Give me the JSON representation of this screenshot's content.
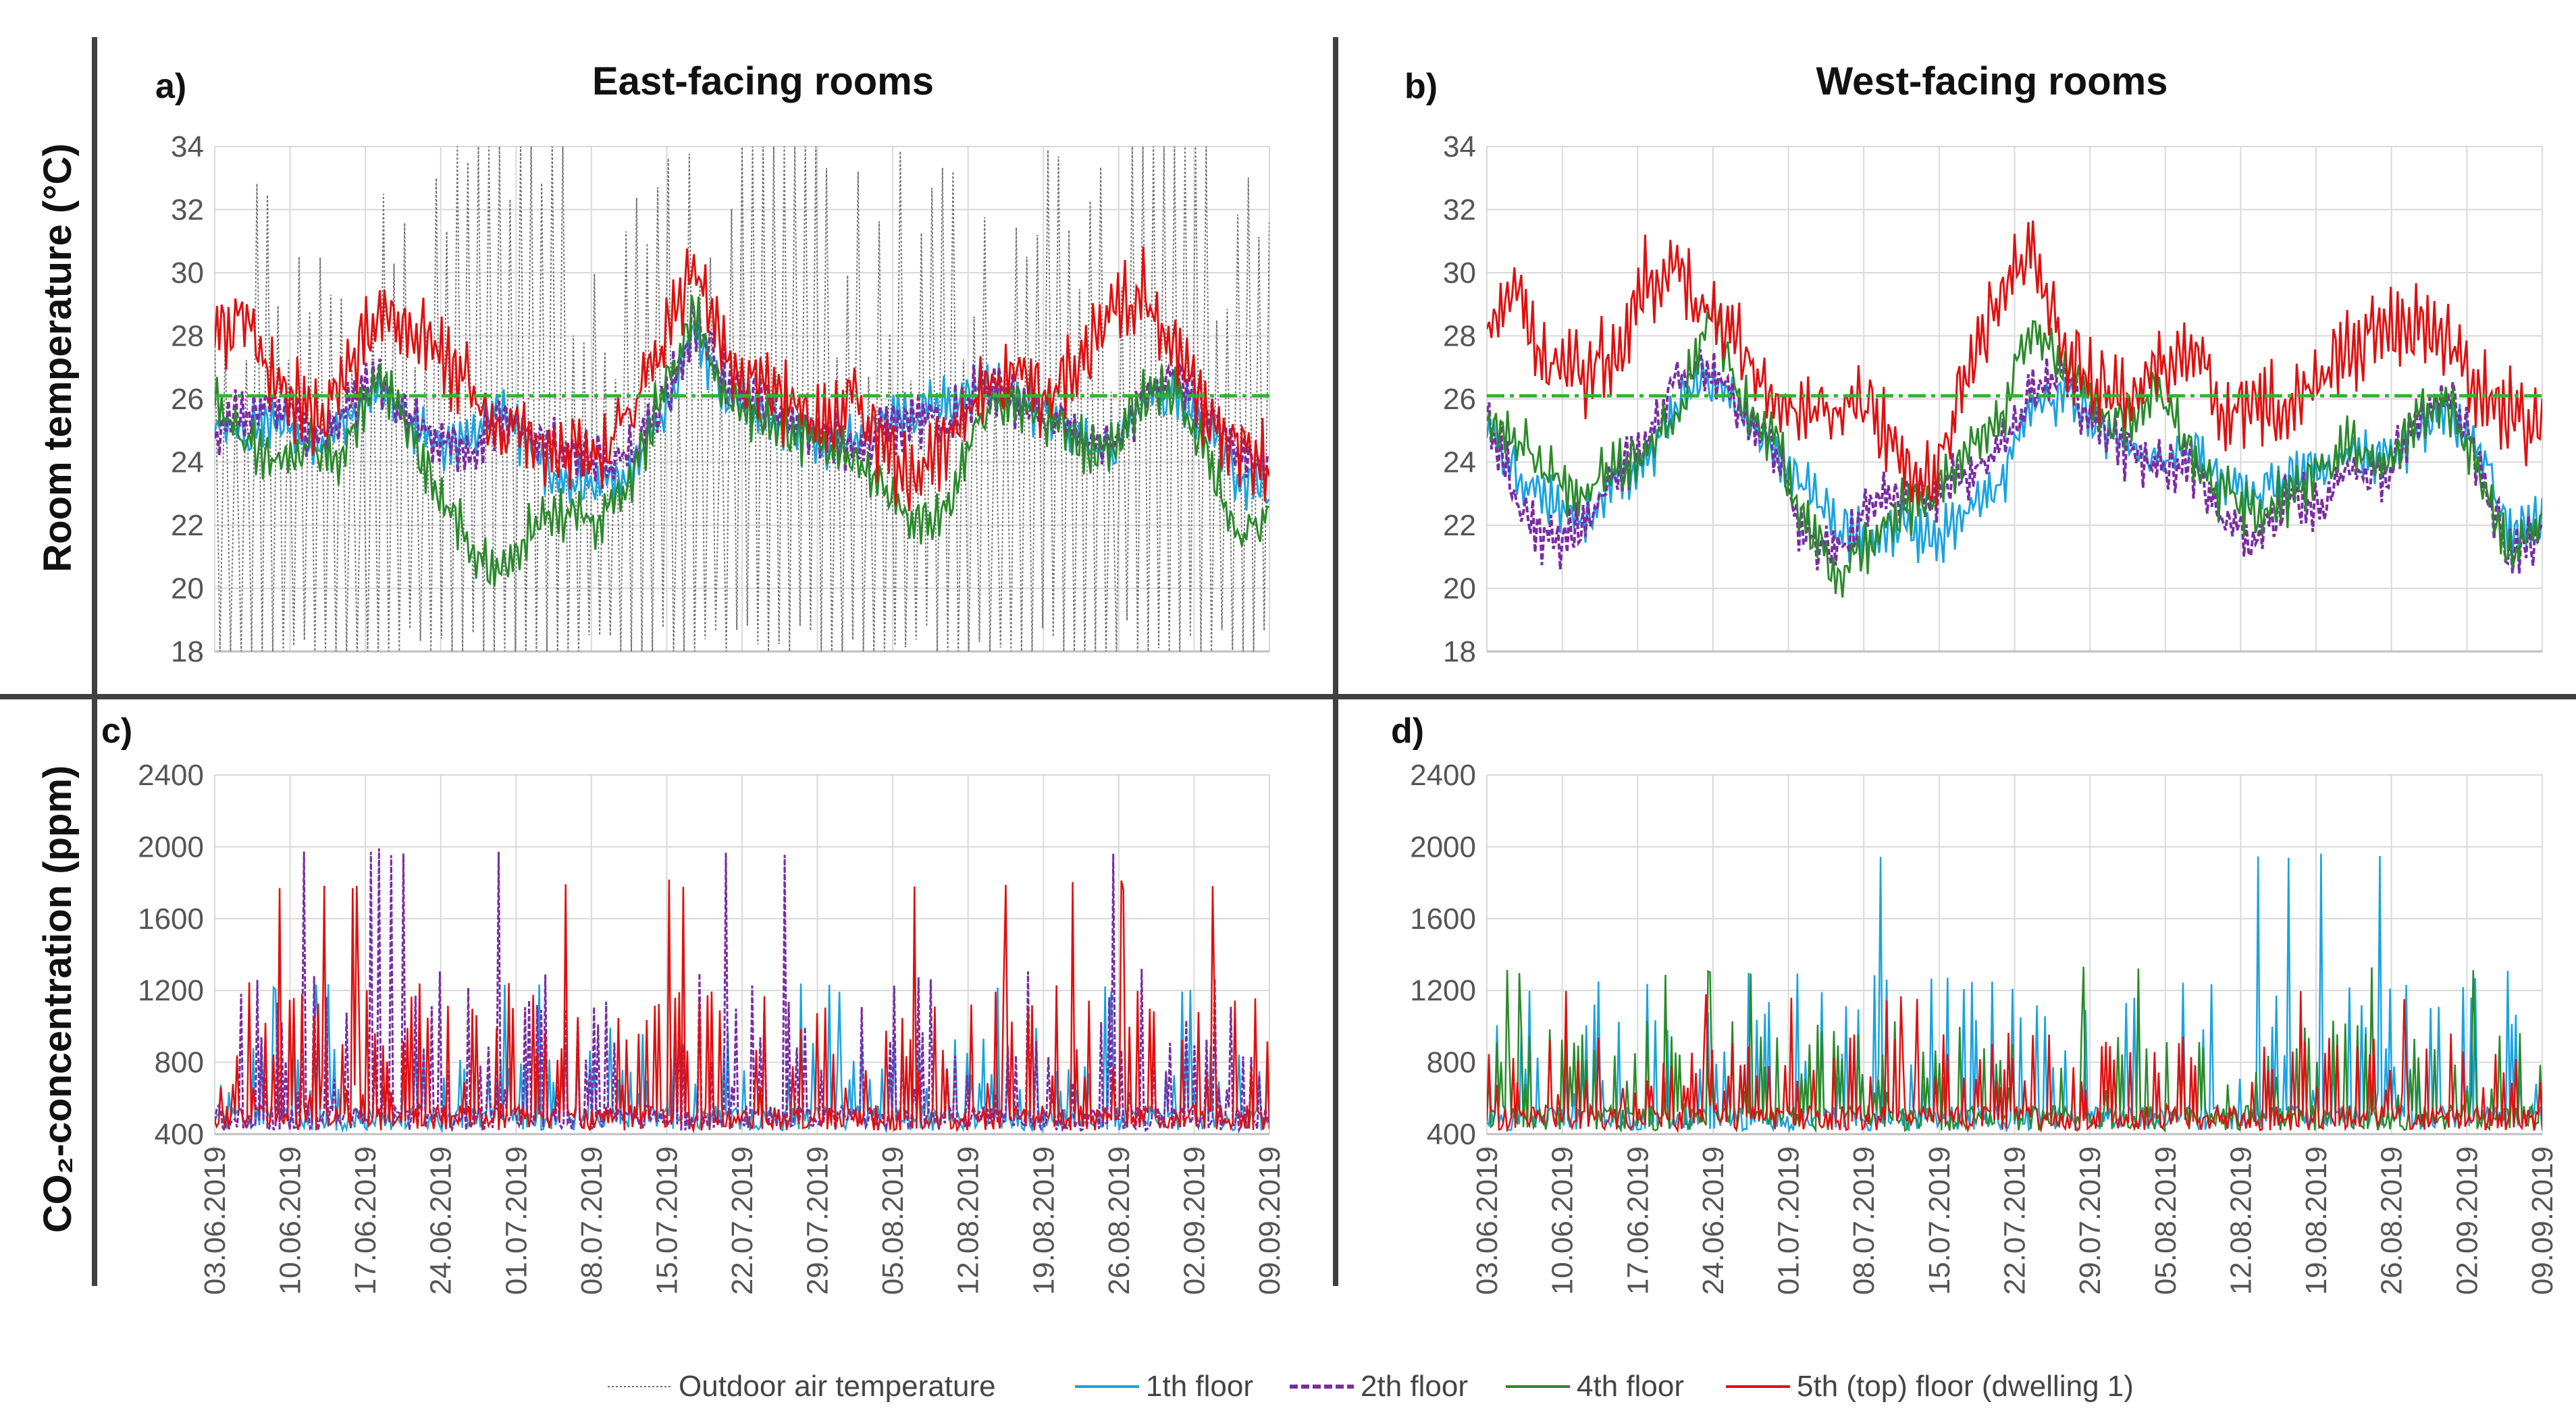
{
  "chart_data": [
    {
      "type": "line",
      "panel": "a)",
      "title": "East-facing rooms",
      "ylabel": "Room temperature (°C)",
      "ylim": [
        18,
        34
      ],
      "yticks": [
        18,
        20,
        22,
        24,
        26,
        28,
        30,
        32,
        34
      ],
      "grid": true,
      "reference_line": 26.1,
      "series": [
        {
          "name": "Outdoor air temperature",
          "approx_range": [
            18,
            34
          ]
        },
        {
          "name": "1th floor",
          "values": [
            25.2,
            24.8,
            25.5,
            24.6,
            25.0,
            26.3,
            25.4,
            24.5,
            24.6,
            25.8,
            24.1,
            23.4,
            23.2,
            23.8,
            25.5,
            27.8,
            26.2,
            25.6,
            25.0,
            24.6,
            24.8,
            25.4,
            25.6,
            26.0,
            26.4,
            26.0,
            25.5,
            24.8,
            24.2,
            25.6,
            26.4,
            25.2,
            23.5,
            23.0
          ]
        },
        {
          "name": "2th floor",
          "values": [
            25.0,
            25.6,
            25.8,
            24.8,
            25.3,
            26.8,
            25.6,
            24.8,
            24.3,
            25.6,
            24.8,
            24.5,
            24.0,
            24.2,
            25.8,
            28.4,
            26.6,
            25.9,
            25.3,
            24.8,
            24.5,
            25.0,
            25.4,
            25.2,
            26.6,
            26.0,
            25.4,
            24.9,
            24.5,
            25.9,
            26.8,
            25.5,
            24.3,
            23.6
          ]
        },
        {
          "name": "4th floor",
          "values": [
            26.0,
            24.5,
            24.0,
            24.6,
            24.2,
            26.8,
            25.2,
            23.0,
            21.4,
            20.6,
            22.2,
            22.4,
            22.1,
            23.4,
            26.1,
            28.6,
            26.0,
            25.4,
            24.9,
            24.4,
            24.0,
            23.1,
            22.0,
            22.6,
            25.5,
            25.8,
            25.3,
            24.7,
            24.3,
            26.1,
            26.3,
            24.4,
            21.6,
            22.4
          ]
        },
        {
          "name": "5th (top) floor (dwelling 1)",
          "values": [
            28.0,
            28.8,
            26.4,
            25.6,
            26.1,
            28.8,
            28.2,
            27.5,
            26.2,
            25.0,
            24.8,
            24.4,
            24.2,
            25.6,
            27.9,
            30.2,
            27.3,
            26.5,
            25.8,
            25.2,
            26.1,
            24.4,
            23.3,
            24.9,
            26.2,
            26.8,
            26.0,
            26.9,
            28.6,
            29.4,
            27.6,
            25.8,
            24.5,
            23.8
          ]
        }
      ]
    },
    {
      "type": "line",
      "panel": "b)",
      "title": "West-facing rooms",
      "ylim": [
        18,
        34
      ],
      "yticks": [
        18,
        20,
        22,
        24,
        26,
        28,
        30,
        32,
        34
      ],
      "grid": true,
      "reference_line": 26.1,
      "series": [
        {
          "name": "1th floor",
          "values": [
            25.0,
            23.5,
            22.8,
            22.1,
            23.5,
            24.0,
            25.8,
            26.7,
            25.4,
            24.2,
            23.1,
            21.8,
            21.6,
            21.9,
            21.5,
            22.4,
            23.2,
            25.7,
            26.2,
            25.4,
            24.5,
            24.0,
            24.5,
            23.2,
            22.8,
            23.6,
            23.5,
            24.4,
            23.8,
            24.8,
            25.6,
            24.5,
            21.7,
            22.1
          ]
        },
        {
          "name": "2th floor",
          "values": [
            25.8,
            22.6,
            21.4,
            22.0,
            23.6,
            24.6,
            26.8,
            27.0,
            25.6,
            24.4,
            21.5,
            21.2,
            22.8,
            22.9,
            23.1,
            23.6,
            24.4,
            26.1,
            26.9,
            25.0,
            24.4,
            23.7,
            24.0,
            22.2,
            21.6,
            22.8,
            22.6,
            24.1,
            23.4,
            25.2,
            26.2,
            24.1,
            21.0,
            21.6
          ]
        },
        {
          "name": "4th floor",
          "values": [
            25.5,
            24.6,
            23.5,
            23.0,
            23.8,
            24.5,
            25.6,
            28.8,
            26.0,
            24.6,
            22.0,
            20.4,
            21.5,
            22.5,
            22.9,
            24.5,
            25.1,
            28.4,
            27.2,
            25.6,
            25.3,
            26.3,
            24.2,
            23.0,
            22.3,
            22.9,
            23.5,
            24.6,
            23.7,
            25.3,
            25.9,
            24.0,
            20.9,
            22.3
          ]
        },
        {
          "name": "5th (top) floor (dwelling 1)",
          "values": [
            28.5,
            29.3,
            27.0,
            26.8,
            27.5,
            29.8,
            30.2,
            28.4,
            27.8,
            26.0,
            25.5,
            25.6,
            25.8,
            24.0,
            23.4,
            26.8,
            29.0,
            31.1,
            27.6,
            26.6,
            26.2,
            26.8,
            27.4,
            25.6,
            26.0,
            25.6,
            26.7,
            27.6,
            28.4,
            28.4,
            27.9,
            26.5,
            25.6,
            24.9
          ]
        }
      ]
    },
    {
      "type": "line",
      "panel": "c)",
      "ylabel": "CO₂-concentration (ppm)",
      "ylim": [
        400,
        2400
      ],
      "yticks": [
        400,
        800,
        1200,
        1600,
        2000,
        2400
      ],
      "grid": true,
      "x_tick_labels": [
        "03.06.2019",
        "10.06.2019",
        "17.06.2019",
        "24.06.2019",
        "01.07.2019",
        "08.07.2019",
        "15.07.2019",
        "22.07.2019",
        "29.07.2019",
        "05.08.2019",
        "12.08.2019",
        "19.08.2019",
        "26.08.2019",
        "02.09.2019",
        "09.09.2019"
      ],
      "series": [
        {
          "name": "1th floor",
          "approx_range": [
            420,
            1250
          ]
        },
        {
          "name": "2th floor",
          "approx_range": [
            420,
            2000
          ]
        },
        {
          "name": "5th (top) floor (dwelling 1)",
          "approx_range": [
            420,
            1820
          ]
        }
      ]
    },
    {
      "type": "line",
      "panel": "d)",
      "ylim": [
        400,
        2400
      ],
      "yticks": [
        400,
        800,
        1200,
        1600,
        2000,
        2400
      ],
      "grid": true,
      "x_tick_labels": [
        "03.06.2019",
        "10.06.2019",
        "17.06.2019",
        "24.06.2019",
        "01.07.2019",
        "08.07.2019",
        "15.07.2019",
        "22.07.2019",
        "29.07.2019",
        "05.08.2019",
        "12.08.2019",
        "19.08.2019",
        "26.08.2019",
        "02.09.2019",
        "09.09.2019"
      ],
      "series": [
        {
          "name": "1th floor",
          "approx_range": [
            420,
            1980
          ]
        },
        {
          "name": "4th floor",
          "approx_range": [
            420,
            1340
          ]
        },
        {
          "name": "5th (top) floor (dwelling 1)",
          "approx_range": [
            420,
            1200
          ]
        }
      ]
    }
  ],
  "legend": {
    "position": "bottom",
    "items": [
      {
        "label": "Outdoor air temperature",
        "color": "#707070",
        "style": "dotted"
      },
      {
        "label": "1th floor",
        "color": "#1aa3e0",
        "style": "solid"
      },
      {
        "label": "2th floor",
        "color": "#7a2da3",
        "style": "dashed"
      },
      {
        "label": "4th floor",
        "color": "#2a8a2a",
        "style": "solid"
      },
      {
        "label": "5th (top) floor (dwelling 1)",
        "color": "#e01010",
        "style": "solid"
      }
    ]
  },
  "colors": {
    "reference_line": "#2fb52f",
    "grid": "#d9d9d9",
    "divider": "#404040"
  }
}
